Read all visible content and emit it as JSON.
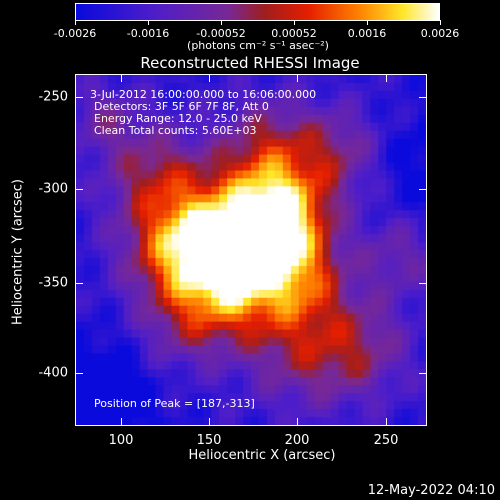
{
  "colorbar": {
    "tick_labels": [
      "-0.0026",
      "-0.0016",
      "-0.00052",
      "0.00052",
      "0.0016",
      "0.0026"
    ],
    "units_label": "(photons cm⁻² s⁻¹ asec⁻²)",
    "min": -0.0026,
    "max": 0.0026
  },
  "plot": {
    "title": "Reconstructed RHESSI Image",
    "annotations": {
      "time_range": "3-Jul-2012 16:00:00.000 to 16:06:00.000",
      "detectors": "Detectors: 3F 5F 6F 7F 8F, Att 0",
      "energy_range": "Energy Range: 12.0 - 25.0 keV",
      "clean_counts": "Clean     Total counts: 5.60E+03",
      "peak_position": "Position of Peak = [187,-313]"
    },
    "xlabel": "Heliocentric X (arcsec)",
    "ylabel": "Heliocentric Y (arcsec)",
    "x_ticks": [
      "100",
      "150",
      "200",
      "250"
    ],
    "y_ticks": [
      "-250",
      "-300",
      "-350",
      "-400"
    ],
    "xlim": [
      75,
      275
    ],
    "ylim": [
      -430,
      -230
    ]
  },
  "footer": {
    "timestamp": "12-May-2022 04:10"
  }
}
